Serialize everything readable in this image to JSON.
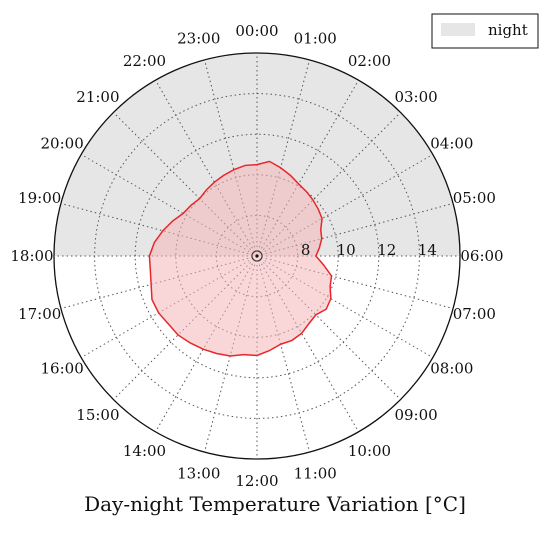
{
  "chart_data": {
    "type": "area",
    "projection": "polar",
    "title": "Day-night Temperature Variation [°C]",
    "theta_direction": "clockwise",
    "theta_zero": "top",
    "theta_tick_labels": [
      "00:00",
      "01:00",
      "02:00",
      "03:00",
      "04:00",
      "05:00",
      "06:00",
      "07:00",
      "08:00",
      "09:00",
      "10:00",
      "11:00",
      "12:00",
      "13:00",
      "14:00",
      "15:00",
      "16:00",
      "17:00",
      "18:00",
      "19:00",
      "20:00",
      "21:00",
      "22:00",
      "23:00"
    ],
    "r_tick_labels": [
      "8",
      "10",
      "12",
      "14"
    ],
    "r_ticks": [
      8,
      10,
      12,
      14
    ],
    "rlim": [
      6,
      16
    ],
    "grid": true,
    "night_band": {
      "label": "night",
      "from_hour": 18,
      "to_hour": 6,
      "color": "#e6e6e6"
    },
    "legend": {
      "placement": "top-right",
      "entries": [
        "night"
      ]
    },
    "series": [
      {
        "hours": [
          0,
          0.5,
          1,
          1.5,
          2,
          2.5,
          3,
          3.5,
          4,
          4.5,
          5,
          5.5,
          6,
          6.5,
          7,
          7.5,
          8,
          8.5,
          9,
          9.5,
          10,
          10.5,
          11,
          11.5,
          12,
          12.5,
          13,
          13.5,
          14,
          14.5,
          15,
          15.5,
          16,
          16.5,
          17,
          17.5,
          18,
          18.5,
          19,
          19.5,
          20,
          20.5,
          21,
          21.5,
          22,
          22.5,
          23,
          23.5
        ],
        "values": [
          10.5,
          10.7,
          10.5,
          10.3,
          10.1,
          10.0,
          9.9,
          9.8,
          9.7,
          9.4,
          9.3,
          9.1,
          8.9,
          9.3,
          9.8,
          9.9,
          10.2,
          10.3,
          10.1,
          10.2,
          10.4,
          10.5,
          10.5,
          10.7,
          10.9,
          10.9,
          11.1,
          11.2,
          11.3,
          11.4,
          11.5,
          11.5,
          11.6,
          11.6,
          11.4,
          11.3,
          11.3,
          11.1,
          10.8,
          10.5,
          10.2,
          10.1,
          10.0,
          10.1,
          10.2,
          10.3,
          10.4,
          10.5
        ],
        "color": "#e8262b",
        "fill": "#f4b6b8"
      }
    ]
  }
}
